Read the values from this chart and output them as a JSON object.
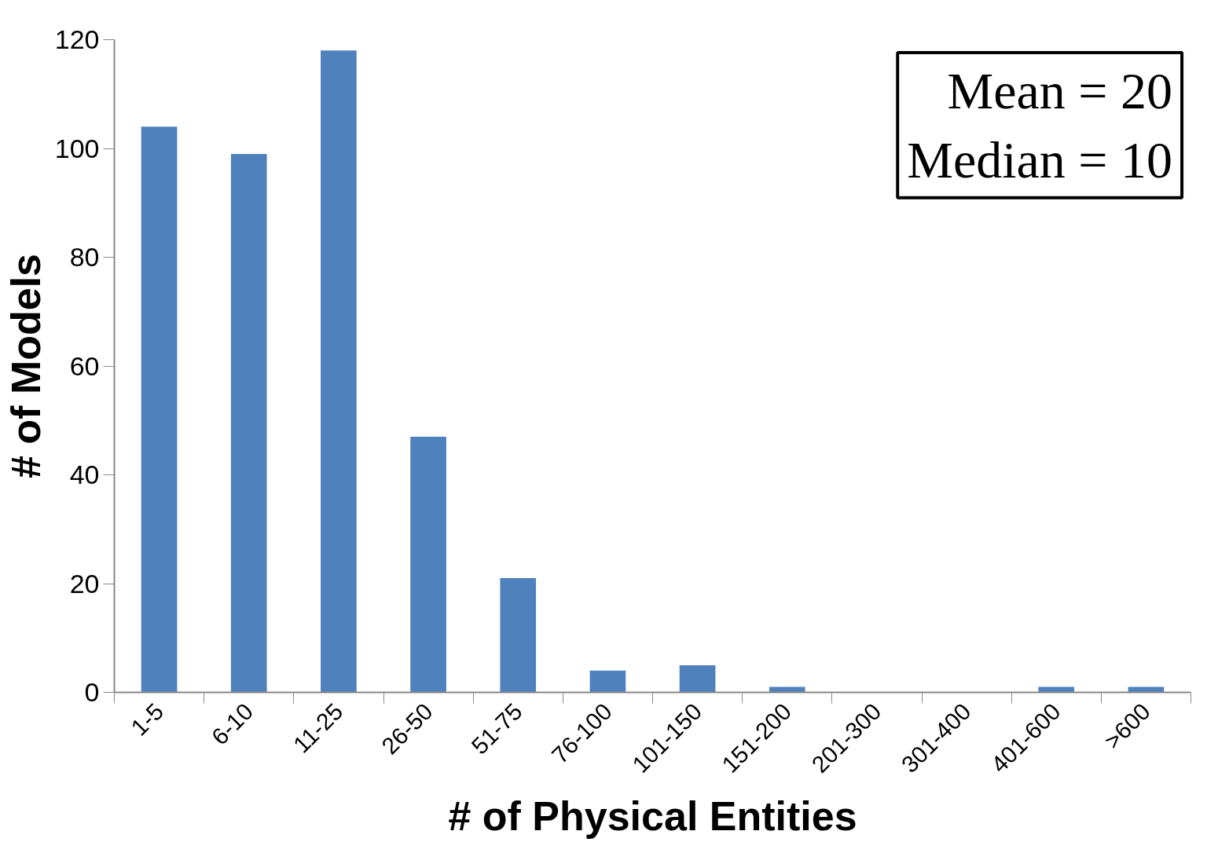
{
  "chart_data": {
    "type": "bar",
    "categories": [
      "1-5",
      "6-10",
      "11-25",
      "26-50",
      "51-75",
      "76-100",
      "101-150",
      "151-200",
      "201-300",
      "301-400",
      "401-600",
      ">600"
    ],
    "values": [
      104,
      99,
      118,
      47,
      21,
      4,
      5,
      1,
      0,
      0,
      1,
      1
    ],
    "color": "#4f81bd",
    "xlabel": "# of Physical Entities",
    "ylabel": "# of Models",
    "ylim": [
      0,
      120
    ],
    "yticks": [
      0,
      20,
      40,
      60,
      80,
      100,
      120
    ],
    "grid": false,
    "annotations": [
      "Mean = 20",
      "Median = 10"
    ]
  }
}
